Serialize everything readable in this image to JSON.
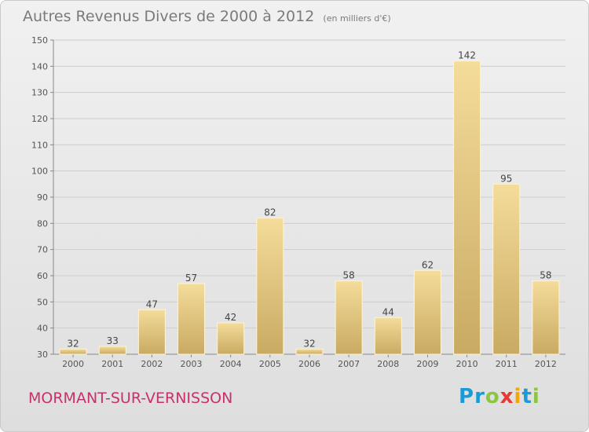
{
  "chart_data": {
    "type": "bar",
    "title": "Autres Revenus Divers de 2000 à 2012",
    "unit": "(en milliers d'€)",
    "categories": [
      "2000",
      "2001",
      "2002",
      "2003",
      "2004",
      "2005",
      "2006",
      "2007",
      "2008",
      "2009",
      "2010",
      "2011",
      "2012"
    ],
    "values": [
      32,
      33,
      47,
      57,
      42,
      82,
      32,
      58,
      44,
      62,
      142,
      95,
      58
    ],
    "ylim": [
      30,
      150
    ],
    "yticks": [
      30,
      40,
      50,
      60,
      70,
      80,
      90,
      100,
      110,
      120,
      130,
      140,
      150
    ],
    "grid": true,
    "bar_color": "#e8cc86"
  },
  "footer": {
    "commune": "MORMANT-SUR-VERNISSON",
    "brand_letters": [
      {
        "ch": "P",
        "color": "#1a9ad6"
      },
      {
        "ch": "r",
        "color": "#1a9ad6"
      },
      {
        "ch": "o",
        "color": "#8cc63f"
      },
      {
        "ch": "x",
        "color": "#e53935"
      },
      {
        "ch": "i",
        "color": "#f7a600"
      },
      {
        "ch": "t",
        "color": "#1a9ad6"
      },
      {
        "ch": "i",
        "color": "#8cc63f"
      }
    ]
  }
}
